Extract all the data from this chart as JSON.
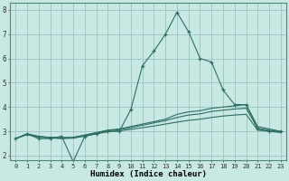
{
  "x": [
    0,
    1,
    2,
    3,
    4,
    5,
    6,
    7,
    8,
    9,
    10,
    11,
    12,
    13,
    14,
    15,
    16,
    17,
    18,
    19,
    20,
    21,
    22,
    23
  ],
  "line1": [
    2.7,
    2.9,
    2.7,
    2.7,
    2.8,
    1.75,
    2.8,
    2.9,
    3.0,
    3.0,
    3.9,
    5.7,
    6.3,
    7.0,
    7.9,
    7.1,
    6.0,
    5.85,
    4.7,
    4.1,
    4.1,
    3.1,
    3.0,
    3.0
  ],
  "line2": [
    2.7,
    2.9,
    2.8,
    2.75,
    2.75,
    2.75,
    2.85,
    2.95,
    3.05,
    3.1,
    3.2,
    3.3,
    3.4,
    3.5,
    3.7,
    3.8,
    3.85,
    3.95,
    4.0,
    4.05,
    4.1,
    3.2,
    3.1,
    3.0
  ],
  "line3": [
    2.7,
    2.88,
    2.78,
    2.75,
    2.72,
    2.75,
    2.83,
    2.93,
    3.03,
    3.07,
    3.15,
    3.25,
    3.35,
    3.44,
    3.57,
    3.67,
    3.72,
    3.82,
    3.87,
    3.92,
    3.95,
    3.13,
    3.05,
    2.98
  ],
  "line4": [
    2.7,
    2.86,
    2.76,
    2.73,
    2.7,
    2.72,
    2.8,
    2.9,
    2.98,
    3.02,
    3.08,
    3.15,
    3.22,
    3.3,
    3.38,
    3.45,
    3.5,
    3.57,
    3.63,
    3.67,
    3.7,
    3.05,
    3.0,
    2.95
  ],
  "bg_color": "#c8e8e4",
  "grid_color": "#a0c8c4",
  "line_color": "#2d6e60",
  "xlabel": "Humidex (Indice chaleur)",
  "ylim": [
    1.8,
    8.3
  ],
  "xlim": [
    -0.5,
    23.5
  ],
  "yticks": [
    2,
    3,
    4,
    5,
    6,
    7,
    8
  ],
  "xticks": [
    0,
    1,
    2,
    3,
    4,
    5,
    6,
    7,
    8,
    9,
    10,
    11,
    12,
    13,
    14,
    15,
    16,
    17,
    18,
    19,
    20,
    21,
    22,
    23
  ]
}
